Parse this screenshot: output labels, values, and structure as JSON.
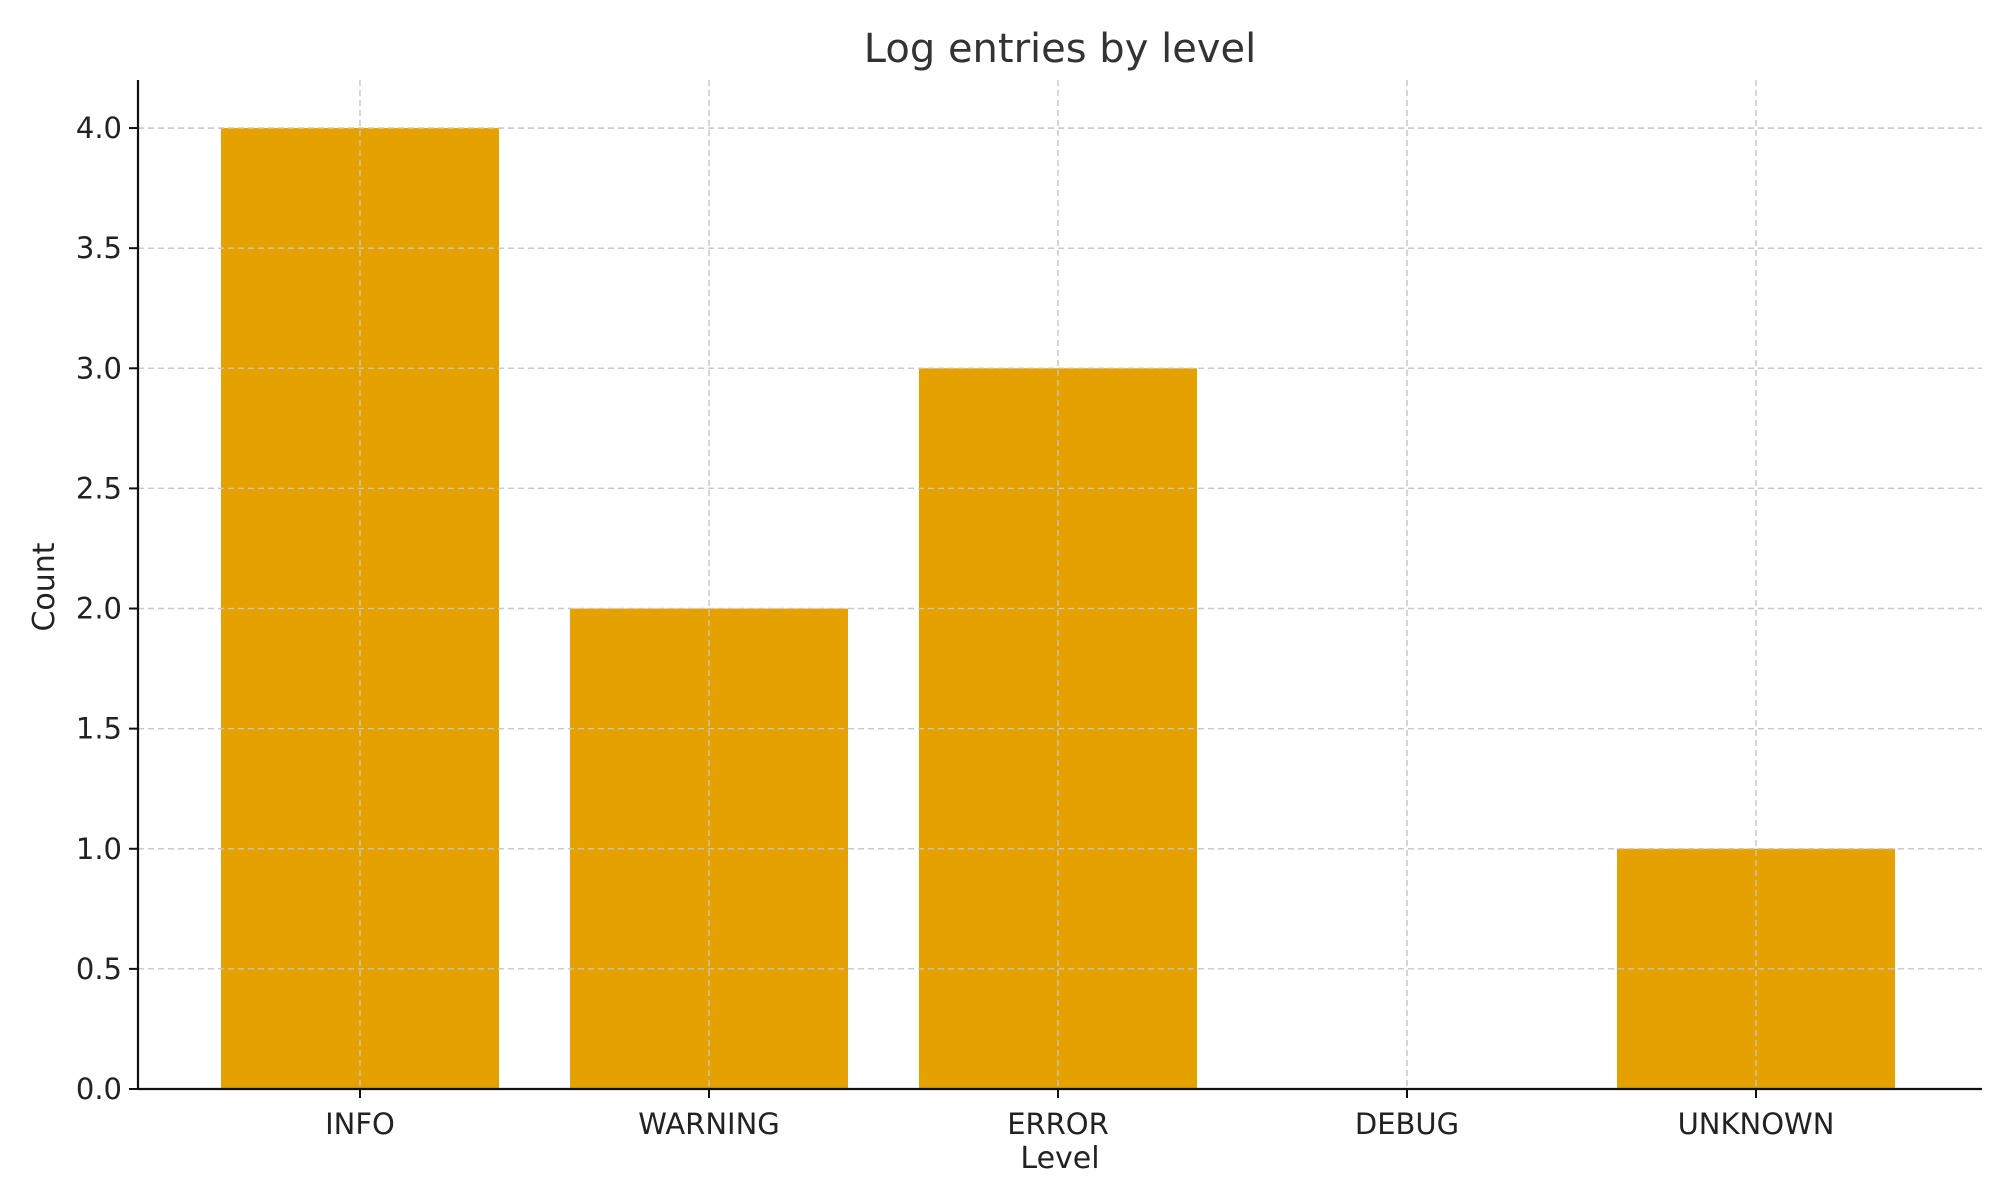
{
  "chart_data": {
    "type": "bar",
    "title": "Log entries by level",
    "xlabel": "Level",
    "ylabel": "Count",
    "categories": [
      "INFO",
      "WARNING",
      "ERROR",
      "DEBUG",
      "UNKNOWN"
    ],
    "values": [
      4,
      2,
      3,
      0,
      1
    ],
    "ylim": [
      0,
      4.2
    ],
    "yticks": [
      "0.0",
      "0.5",
      "1.0",
      "1.5",
      "2.0",
      "2.5",
      "3.0",
      "3.5",
      "4.0"
    ],
    "grid": true,
    "bar_color": "#E5A100"
  }
}
